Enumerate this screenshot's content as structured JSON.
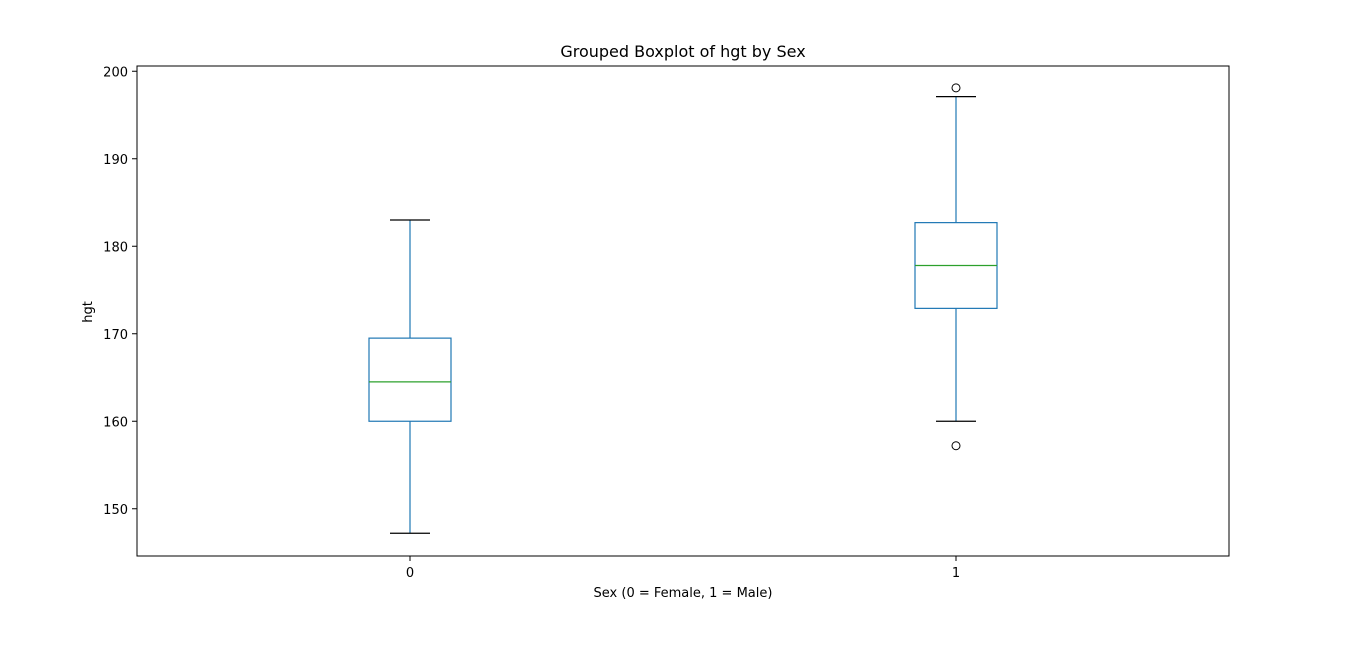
{
  "chart_data": {
    "type": "box",
    "title": "Grouped Boxplot of hgt by Sex",
    "xlabel": "Sex (0 = Female, 1 = Male)",
    "ylabel": "hgt",
    "categories": [
      "0",
      "1"
    ],
    "ylim": [
      144.6,
      200.6
    ],
    "yticks": [
      150,
      160,
      170,
      180,
      190,
      200
    ],
    "grid": false,
    "colors": {
      "box": "#1f77b4",
      "median": "#2ca02c",
      "cap": "#000000",
      "flier": "#000000"
    },
    "groups": [
      {
        "category": "0",
        "whisker_low": 147.2,
        "q1": 160.0,
        "median": 164.5,
        "q3": 169.5,
        "whisker_high": 183.0,
        "fliers": []
      },
      {
        "category": "1",
        "whisker_low": 160.0,
        "q1": 172.9,
        "median": 177.8,
        "q3": 182.7,
        "whisker_high": 197.1,
        "fliers": [
          157.2,
          198.1
        ]
      }
    ]
  }
}
